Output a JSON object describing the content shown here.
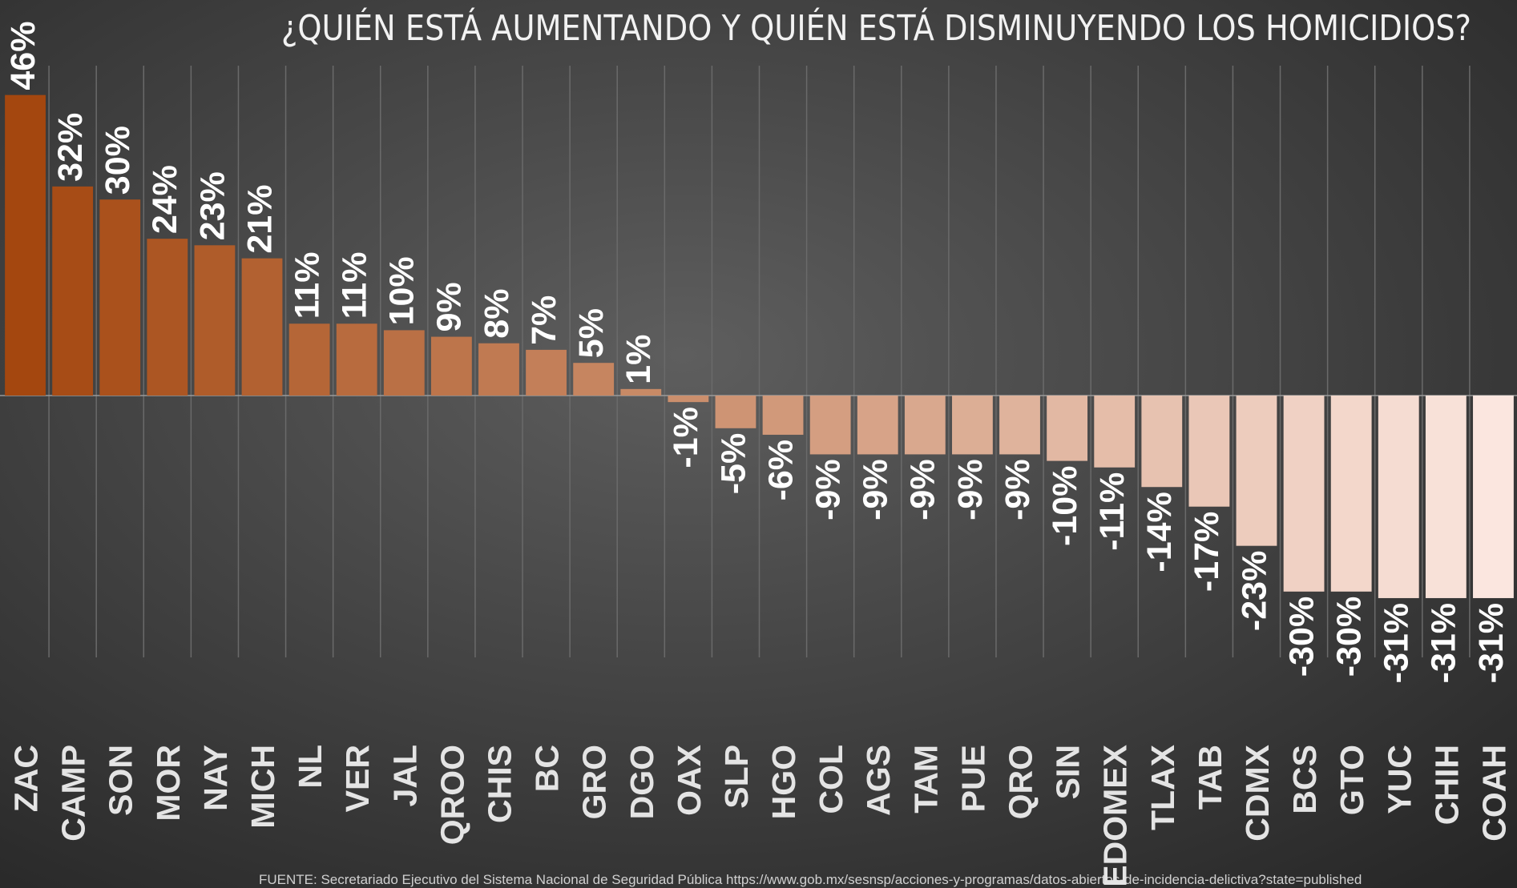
{
  "chart_data": {
    "type": "bar",
    "title": "¿QUIÉN ESTÁ AUMENTANDO Y QUIÉN ESTÁ DISMINUYENDO LOS HOMICIDIOS?",
    "categories": [
      "ZAC",
      "CAMP",
      "SON",
      "MOR",
      "NAY",
      "MICH",
      "NL",
      "VER",
      "JAL",
      "QROO",
      "CHIS",
      "BC",
      "GRO",
      "DGO",
      "OAX",
      "SLP",
      "HGO",
      "COL",
      "AGS",
      "TAM",
      "PUE",
      "QRO",
      "SIN",
      "EDOMEX",
      "TLAX",
      "TAB",
      "CDMX",
      "BCS",
      "GTO",
      "YUC",
      "CHIH",
      "COAH"
    ],
    "values": [
      46,
      32,
      30,
      24,
      23,
      21,
      11,
      11,
      10,
      9,
      8,
      7,
      5,
      1,
      -1,
      -5,
      -6,
      -9,
      -9,
      -9,
      -9,
      -9,
      -10,
      -11,
      -14,
      -17,
      -23,
      -30,
      -30,
      -31,
      -31,
      -31
    ],
    "value_labels": [
      "46%",
      "32%",
      "30%",
      "24%",
      "23%",
      "21%",
      "11%",
      "11%",
      "10%",
      "9%",
      "8%",
      "7%",
      "5%",
      "1%",
      "-1%",
      "-5%",
      "-6%",
      "-9%",
      "-9%",
      "-9%",
      "-9%",
      "-9%",
      "-10%",
      "-11%",
      "-14%",
      "-17%",
      "-23%",
      "-30%",
      "-30%",
      "-31%",
      "-31%",
      "-31%"
    ],
    "colors": [
      "#a4470f",
      "#fbe6df"
    ],
    "source": "FUENTE: Secretariado Ejecutivo del Sistema Nacional de Seguridad Pública https://www.gob.mx/sesnsp/acciones-y-programas/datos-abiertos-de-incidencia-delictiva?state=published"
  }
}
